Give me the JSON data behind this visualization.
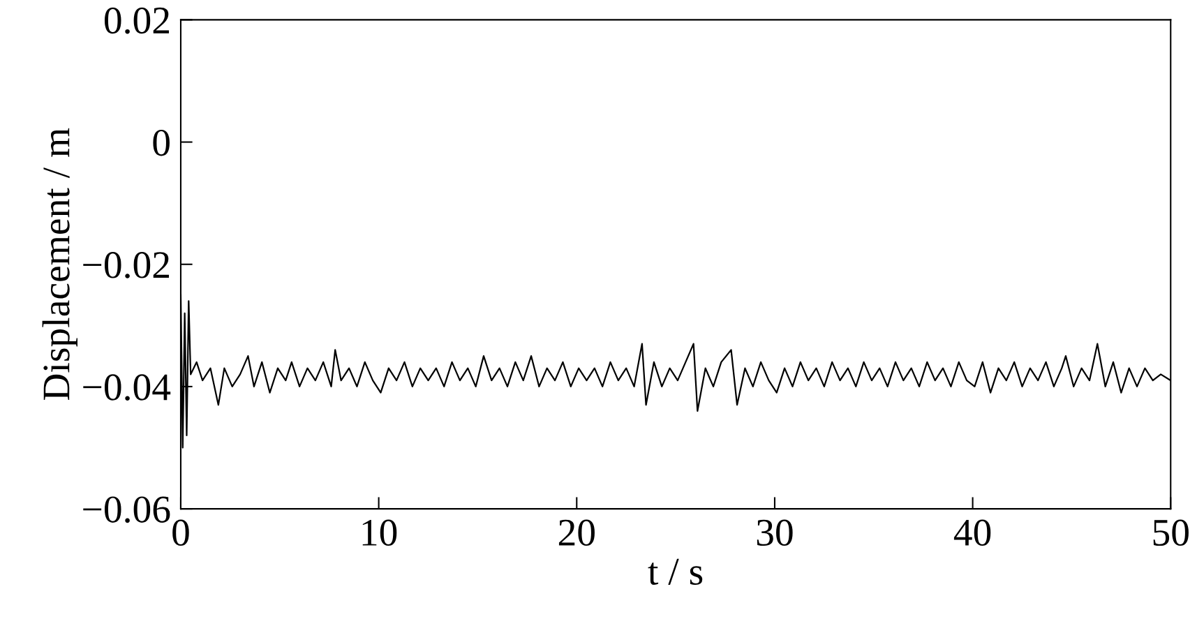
{
  "chart_data": {
    "type": "line",
    "xlabel": "t / s",
    "ylabel": "Displacement / m",
    "xlim": [
      0,
      50
    ],
    "xticks": [
      0,
      10,
      20,
      30,
      40,
      50
    ],
    "ylim": [
      -0.06,
      0.02
    ],
    "yticks": [
      {
        "value": -0.06,
        "label": "−0.06"
      },
      {
        "value": -0.04,
        "label": "−0.04"
      },
      {
        "value": -0.02,
        "label": "−0.02"
      },
      0,
      0.02
    ],
    "grid": false,
    "marker": "none",
    "line_style": "solid",
    "color": "#000000",
    "x": [
      0,
      0.1,
      0.2,
      0.3,
      0.4,
      0.5,
      0.8,
      1.1,
      1.5,
      1.9,
      2.2,
      2.6,
      3.0,
      3.4,
      3.7,
      4.1,
      4.5,
      4.9,
      5.3,
      5.6,
      6.0,
      6.4,
      6.8,
      7.2,
      7.6,
      7.8,
      8.1,
      8.5,
      8.9,
      9.3,
      9.7,
      10.1,
      10.5,
      10.9,
      11.3,
      11.7,
      12.1,
      12.5,
      12.9,
      13.3,
      13.7,
      14.1,
      14.5,
      14.9,
      15.3,
      15.7,
      16.1,
      16.5,
      16.9,
      17.3,
      17.7,
      18.1,
      18.5,
      18.9,
      19.3,
      19.7,
      20.1,
      20.5,
      20.9,
      21.3,
      21.7,
      22.1,
      22.5,
      22.9,
      23.3,
      23.5,
      23.9,
      24.3,
      24.7,
      25.1,
      25.5,
      25.9,
      26.1,
      26.5,
      26.9,
      27.3,
      27.8,
      28.1,
      28.5,
      28.9,
      29.3,
      29.7,
      30.1,
      30.5,
      30.9,
      31.3,
      31.7,
      32.1,
      32.5,
      32.9,
      33.3,
      33.7,
      34.1,
      34.5,
      34.9,
      35.3,
      35.7,
      36.1,
      36.5,
      36.9,
      37.3,
      37.7,
      38.1,
      38.5,
      38.9,
      39.3,
      39.7,
      40.1,
      40.5,
      40.9,
      41.3,
      41.7,
      42.1,
      42.5,
      42.9,
      43.3,
      43.7,
      44.1,
      44.5,
      44.7,
      45.1,
      45.5,
      45.9,
      46.3,
      46.7,
      47.1,
      47.5,
      47.9,
      48.3,
      48.7,
      49.1,
      49.5,
      50
    ],
    "values": [
      -0.025,
      -0.05,
      -0.028,
      -0.048,
      -0.026,
      -0.038,
      -0.036,
      -0.039,
      -0.037,
      -0.043,
      -0.037,
      -0.04,
      -0.038,
      -0.035,
      -0.04,
      -0.036,
      -0.041,
      -0.037,
      -0.039,
      -0.036,
      -0.04,
      -0.037,
      -0.039,
      -0.036,
      -0.04,
      -0.034,
      -0.039,
      -0.037,
      -0.04,
      -0.036,
      -0.039,
      -0.041,
      -0.037,
      -0.039,
      -0.036,
      -0.04,
      -0.037,
      -0.039,
      -0.037,
      -0.04,
      -0.036,
      -0.039,
      -0.037,
      -0.04,
      -0.035,
      -0.039,
      -0.037,
      -0.04,
      -0.036,
      -0.039,
      -0.035,
      -0.04,
      -0.037,
      -0.039,
      -0.036,
      -0.04,
      -0.037,
      -0.039,
      -0.037,
      -0.04,
      -0.036,
      -0.039,
      -0.037,
      -0.04,
      -0.033,
      -0.043,
      -0.036,
      -0.04,
      -0.037,
      -0.039,
      -0.036,
      -0.033,
      -0.044,
      -0.037,
      -0.04,
      -0.036,
      -0.034,
      -0.043,
      -0.037,
      -0.04,
      -0.036,
      -0.039,
      -0.041,
      -0.037,
      -0.04,
      -0.036,
      -0.039,
      -0.037,
      -0.04,
      -0.036,
      -0.039,
      -0.037,
      -0.04,
      -0.036,
      -0.039,
      -0.037,
      -0.04,
      -0.036,
      -0.039,
      -0.037,
      -0.04,
      -0.036,
      -0.039,
      -0.037,
      -0.04,
      -0.036,
      -0.039,
      -0.04,
      -0.036,
      -0.041,
      -0.037,
      -0.039,
      -0.036,
      -0.04,
      -0.037,
      -0.039,
      -0.036,
      -0.04,
      -0.037,
      -0.035,
      -0.04,
      -0.037,
      -0.039,
      -0.033,
      -0.04,
      -0.036,
      -0.041,
      -0.037,
      -0.04,
      -0.037,
      -0.039,
      -0.038,
      -0.039
    ]
  }
}
